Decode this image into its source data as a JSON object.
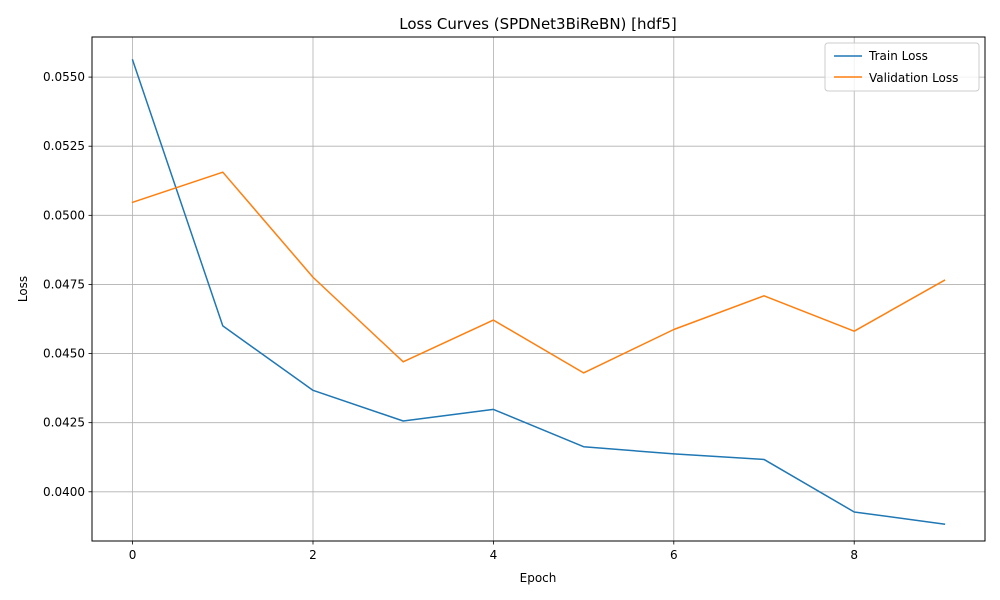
{
  "chart_data": {
    "type": "line",
    "title": "Loss Curves (SPDNet3BiReBN) [hdf5]",
    "xlabel": "Epoch",
    "ylabel": "Loss",
    "x": [
      0,
      1,
      2,
      3,
      4,
      5,
      6,
      7,
      8,
      9
    ],
    "xlim": [
      -0.45,
      9.45
    ],
    "ylim": [
      0.03822,
      0.05645
    ],
    "xticks": [
      0,
      2,
      4,
      6,
      8
    ],
    "xtick_labels": [
      "0",
      "2",
      "4",
      "6",
      "8"
    ],
    "yticks": [
      0.04,
      0.0425,
      0.045,
      0.0475,
      0.05,
      0.0525,
      0.055
    ],
    "ytick_labels": [
      "0.0400",
      "0.0425",
      "0.0450",
      "0.0475",
      "0.0500",
      "0.0525",
      "0.0550"
    ],
    "grid": true,
    "legend_position": "top-right",
    "series": [
      {
        "name": "Train Loss",
        "color": "#1f77b4",
        "values": [
          0.05562,
          0.046,
          0.04367,
          0.04256,
          0.04298,
          0.04163,
          0.04137,
          0.04117,
          0.03927,
          0.03883
        ]
      },
      {
        "name": "Validation Loss",
        "color": "#ff7f0e",
        "values": [
          0.05047,
          0.05156,
          0.04776,
          0.0447,
          0.04621,
          0.0443,
          0.04587,
          0.04709,
          0.04581,
          0.04765
        ]
      }
    ]
  }
}
